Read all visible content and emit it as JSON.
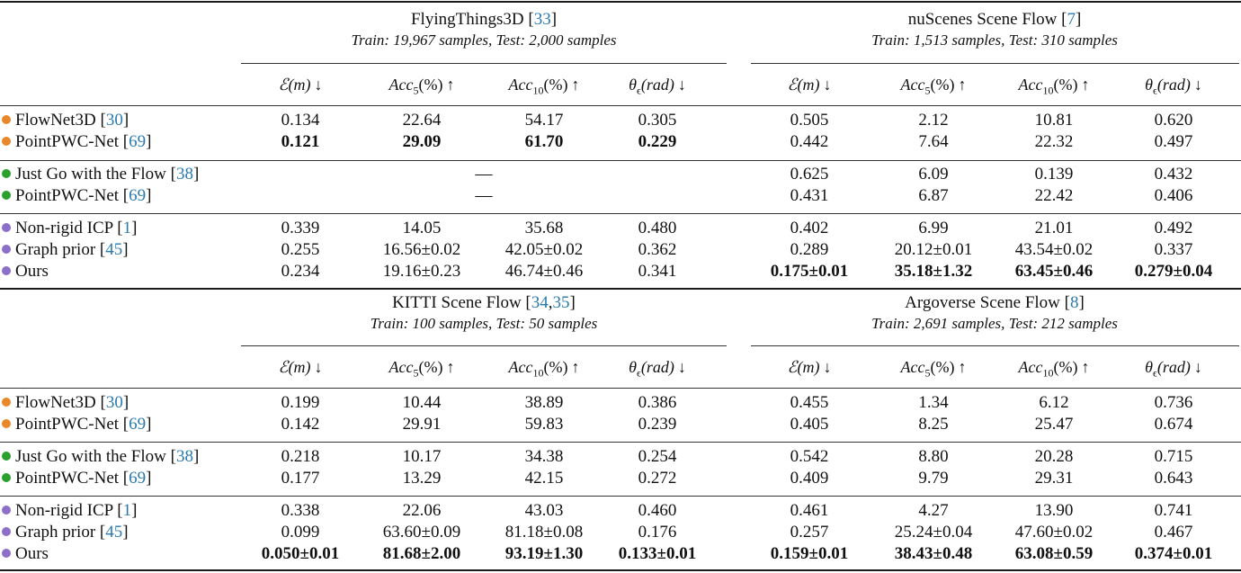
{
  "colors": {
    "supervised_ft3d": "#e8882a",
    "self_supervised": "#2ca02c",
    "optimization": "#8c6fc8",
    "ref_link": "#2a7ab0"
  },
  "columns": [
    {
      "metric": "E",
      "label": "ℰ(m)",
      "arrow": "↓"
    },
    {
      "metric": "Acc",
      "sub": "5",
      "label": "Acc",
      "unit": "(%)",
      "arrow": "↑"
    },
    {
      "metric": "Acc",
      "sub": "10",
      "label": "Acc",
      "unit": "(%)",
      "arrow": "↑"
    },
    {
      "metric": "theta",
      "label": "θ",
      "sub": "ϵ",
      "unit": "(rad)",
      "arrow": "↓"
    }
  ],
  "blocks": [
    {
      "left": {
        "title": "FlyingThings3D [",
        "ref": "33",
        "title_end": "]",
        "subtitle": "Train: 19,967 samples, Test: 2,000 samples"
      },
      "right": {
        "title": "nuScenes Scene Flow [",
        "ref": "7",
        "title_end": "]",
        "subtitle": "Train: 1,513 samples, Test: 310 samples"
      },
      "rows": [
        {
          "method": "FlowNet3D [",
          "ref": "30",
          "group": "supervised_ft3d",
          "left": [
            "0.134",
            "22.64",
            "54.17",
            "0.305"
          ],
          "left_bold": [
            false,
            false,
            false,
            false
          ],
          "right": [
            "0.505",
            "2.12",
            "10.81",
            "0.620"
          ],
          "right_bold": [
            false,
            false,
            false,
            false
          ]
        },
        {
          "method": "PointPWC-Net [",
          "ref": "69",
          "group": "supervised_ft3d",
          "left": [
            "0.121",
            "29.09",
            "61.70",
            "0.229"
          ],
          "left_bold": [
            true,
            true,
            true,
            true
          ],
          "right": [
            "0.442",
            "7.64",
            "22.32",
            "0.497"
          ],
          "right_bold": [
            false,
            false,
            false,
            false
          ]
        },
        {
          "method": "Just Go with the Flow [",
          "ref": "38",
          "group": "self_supervised",
          "left": [
            "—"
          ],
          "left_bold": [
            false
          ],
          "right": [
            "0.625",
            "6.09",
            "0.139",
            "0.432"
          ],
          "right_bold": [
            false,
            false,
            false,
            false
          ]
        },
        {
          "method": "PointPWC-Net [",
          "ref": "69",
          "group": "self_supervised",
          "left": [
            "—"
          ],
          "left_bold": [
            false
          ],
          "right": [
            "0.431",
            "6.87",
            "22.42",
            "0.406"
          ],
          "right_bold": [
            false,
            false,
            false,
            false
          ]
        },
        {
          "method": "Non-rigid ICP [",
          "ref": "1",
          "group": "optimization",
          "left": [
            "0.339",
            "14.05",
            "35.68",
            "0.480"
          ],
          "left_bold": [
            false,
            false,
            false,
            false
          ],
          "right": [
            "0.402",
            "6.99",
            "21.01",
            "0.492"
          ],
          "right_bold": [
            false,
            false,
            false,
            false
          ]
        },
        {
          "method": "Graph prior [",
          "ref": "45",
          "group": "optimization",
          "left": [
            "0.255",
            "16.56±0.02",
            "42.05±0.02",
            "0.362"
          ],
          "left_bold": [
            false,
            false,
            false,
            false
          ],
          "right": [
            "0.289",
            "20.12±0.01",
            "43.54±0.02",
            "0.337"
          ],
          "right_bold": [
            false,
            false,
            false,
            false
          ]
        },
        {
          "method": "Ours",
          "ref": null,
          "group": "optimization",
          "left": [
            "0.234",
            "19.16±0.23",
            "46.74±0.46",
            "0.341"
          ],
          "left_bold": [
            false,
            false,
            false,
            false
          ],
          "right": [
            "0.175±0.01",
            "35.18±1.32",
            "63.45±0.46",
            "0.279±0.04"
          ],
          "right_bold": [
            true,
            true,
            true,
            true
          ]
        }
      ]
    },
    {
      "left": {
        "title": "KITTI Scene Flow [",
        "ref": "34",
        "ref2": "35",
        "title_end": "]",
        "subtitle": "Train: 100 samples, Test: 50 samples"
      },
      "right": {
        "title": "Argoverse Scene Flow [",
        "ref": "8",
        "title_end": "]",
        "subtitle": "Train: 2,691 samples, Test: 212 samples"
      },
      "rows": [
        {
          "method": "FlowNet3D [",
          "ref": "30",
          "group": "supervised_ft3d",
          "left": [
            "0.199",
            "10.44",
            "38.89",
            "0.386"
          ],
          "left_bold": [
            false,
            false,
            false,
            false
          ],
          "right": [
            "0.455",
            "1.34",
            "6.12",
            "0.736"
          ],
          "right_bold": [
            false,
            false,
            false,
            false
          ]
        },
        {
          "method": "PointPWC-Net [",
          "ref": "69",
          "group": "supervised_ft3d",
          "left": [
            "0.142",
            "29.91",
            "59.83",
            "0.239"
          ],
          "left_bold": [
            false,
            false,
            false,
            false
          ],
          "right": [
            "0.405",
            "8.25",
            "25.47",
            "0.674"
          ],
          "right_bold": [
            false,
            false,
            false,
            false
          ]
        },
        {
          "method": "Just Go with the Flow [",
          "ref": "38",
          "group": "self_supervised",
          "left": [
            "0.218",
            "10.17",
            "34.38",
            "0.254"
          ],
          "left_bold": [
            false,
            false,
            false,
            false
          ],
          "right": [
            "0.542",
            "8.80",
            "20.28",
            "0.715"
          ],
          "right_bold": [
            false,
            false,
            false,
            false
          ]
        },
        {
          "method": "PointPWC-Net [",
          "ref": "69",
          "group": "self_supervised",
          "left": [
            "0.177",
            "13.29",
            "42.15",
            "0.272"
          ],
          "left_bold": [
            false,
            false,
            false,
            false
          ],
          "right": [
            "0.409",
            "9.79",
            "29.31",
            "0.643"
          ],
          "right_bold": [
            false,
            false,
            false,
            false
          ]
        },
        {
          "method": "Non-rigid ICP [",
          "ref": "1",
          "group": "optimization",
          "left": [
            "0.338",
            "22.06",
            "43.03",
            "0.460"
          ],
          "left_bold": [
            false,
            false,
            false,
            false
          ],
          "right": [
            "0.461",
            "4.27",
            "13.90",
            "0.741"
          ],
          "right_bold": [
            false,
            false,
            false,
            false
          ]
        },
        {
          "method": "Graph prior [",
          "ref": "45",
          "group": "optimization",
          "left": [
            "0.099",
            "63.60±0.09",
            "81.18±0.08",
            "0.176"
          ],
          "left_bold": [
            false,
            false,
            false,
            false
          ],
          "right": [
            "0.257",
            "25.24±0.04",
            "47.60±0.02",
            "0.467"
          ],
          "right_bold": [
            false,
            false,
            false,
            false
          ]
        },
        {
          "method": "Ours",
          "ref": null,
          "group": "optimization",
          "left": [
            "0.050±0.01",
            "81.68±2.00",
            "93.19±1.30",
            "0.133±0.01"
          ],
          "left_bold": [
            true,
            true,
            true,
            true
          ],
          "right": [
            "0.159±0.01",
            "38.43±0.48",
            "63.08±0.59",
            "0.374±0.01"
          ],
          "right_bold": [
            true,
            true,
            true,
            true
          ]
        }
      ]
    }
  ]
}
